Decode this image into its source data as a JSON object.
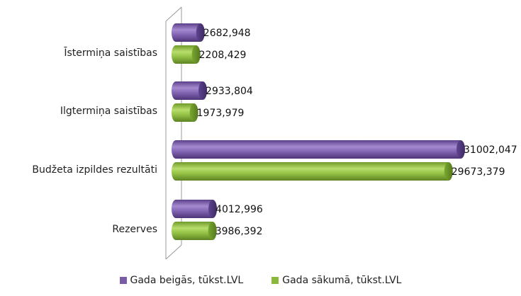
{
  "chart_data": {
    "type": "bar",
    "orientation": "horizontal",
    "style": "3d-cylinder",
    "categories": [
      "Īstermiņa saistības",
      "Ilgtermiņa saistības",
      "Budžeta izpildes rezultāti",
      "Rezerves"
    ],
    "series": [
      {
        "name": "Gada beigās, tūkst.LVL",
        "color": "#7b5aa6",
        "values": [
          2682.948,
          2933.804,
          31002.047,
          4012.996
        ],
        "labels": [
          "2682,948",
          "2933,804",
          "31002,047",
          "4012,996"
        ]
      },
      {
        "name": "Gada sākumā, tūkst.LVL",
        "color": "#8ab83a",
        "values": [
          2208.429,
          1973.979,
          29673.379,
          3986.392
        ],
        "labels": [
          "2208,429",
          "1973,979",
          "29673,379",
          "3986,392"
        ]
      }
    ],
    "xlim": [
      0,
      31002.047
    ],
    "grid": false,
    "legend_position": "bottom"
  }
}
